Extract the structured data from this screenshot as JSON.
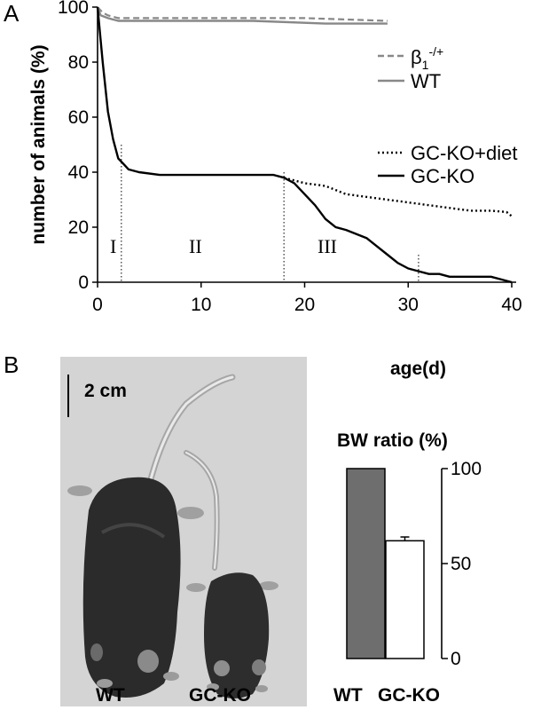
{
  "panels": {
    "a": {
      "letter": "A"
    },
    "b": {
      "letter": "B"
    }
  },
  "colors": {
    "wt": "#888888",
    "beta": "#888888",
    "gcko": "#000000",
    "gcko_diet": "#000000",
    "bar_wt": "#6e6e6e",
    "bar_gcko": "#ffffff"
  },
  "survival": {
    "ylabel": "number of animals (%)",
    "xlabel": "age(d)",
    "phases": [
      "I",
      "II",
      "III"
    ],
    "phase_boundaries": [
      2.3,
      18,
      31
    ],
    "legend": {
      "beta_base": "β",
      "beta_sub": "1",
      "beta_sup": "-/+",
      "wt": "WT",
      "gcko_diet": "GC-KO+diet",
      "gcko": "GC-KO"
    },
    "scale_bar": "2 cm"
  },
  "bw": {
    "title": "BW ratio (%)",
    "categories": [
      "WT",
      "GC-KO"
    ]
  },
  "photo": {
    "labels": [
      "WT",
      "GC-KO"
    ]
  },
  "chart_data": [
    {
      "type": "line",
      "xlabel": "age(d)",
      "ylabel": "number of animals (%)",
      "xlim": [
        0,
        40
      ],
      "ylim": [
        0,
        100
      ],
      "xticks": [
        0,
        10,
        20,
        30,
        40
      ],
      "yticks": [
        0,
        20,
        40,
        60,
        80,
        100
      ],
      "legend_position": "right",
      "series": [
        {
          "name": "β1-/+",
          "style": "dashed",
          "x": [
            0,
            0.5,
            1,
            2,
            4,
            10,
            20,
            28
          ],
          "y": [
            100,
            98,
            97,
            96,
            96,
            96,
            96,
            95
          ]
        },
        {
          "name": "WT",
          "style": "solid",
          "x": [
            0,
            0.3,
            1,
            2,
            5,
            15,
            22,
            28
          ],
          "y": [
            100,
            97,
            96,
            95,
            95,
            95,
            94,
            94
          ]
        },
        {
          "name": "GC-KO+diet",
          "style": "dotted",
          "x": [
            18,
            20,
            22,
            24,
            26,
            28,
            30,
            32,
            34,
            36,
            38,
            39.5,
            40
          ],
          "y": [
            38,
            36,
            35,
            32,
            31,
            30,
            29,
            28,
            27,
            26,
            26,
            25.5,
            24
          ]
        },
        {
          "name": "GC-KO",
          "style": "solid",
          "x": [
            0,
            0.5,
            1,
            1.5,
            2,
            2.5,
            3,
            4,
            6,
            10,
            17,
            18,
            19,
            20,
            21,
            22,
            23,
            24,
            26,
            27,
            28,
            29,
            30,
            31,
            32,
            33,
            34,
            35,
            36,
            37,
            38,
            39,
            40
          ],
          "y": [
            100,
            80,
            62,
            52,
            45,
            43,
            41,
            40,
            39,
            39,
            39,
            38,
            36,
            32,
            28,
            23,
            20,
            19,
            16,
            13,
            10,
            7,
            5,
            4,
            3,
            3,
            2,
            2,
            2,
            2,
            2,
            1,
            0
          ]
        }
      ]
    },
    {
      "type": "bar",
      "title": "BW ratio (%)",
      "categories": [
        "WT",
        "GC-KO"
      ],
      "values": [
        100,
        62
      ],
      "errors": [
        0,
        2
      ],
      "ylim": [
        0,
        100
      ],
      "yticks": [
        0,
        50,
        100
      ]
    }
  ]
}
